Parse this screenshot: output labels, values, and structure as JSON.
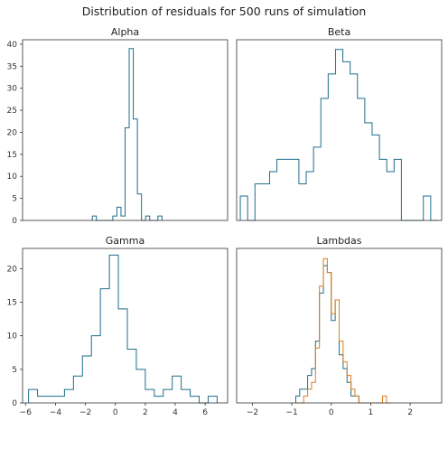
{
  "title": "Distribution of residuals for 500 runs of simulation",
  "colors": {
    "series_blue": "#1f6e8c",
    "series_orange": "#e07b1a",
    "axes": "#333333",
    "background": "#ffffff"
  },
  "chart_data": [
    {
      "type": "histogram",
      "title": "Alpha",
      "xlim": [
        -5.0,
        5.0
      ],
      "ylim": [
        0,
        41
      ],
      "yticks": [
        0,
        5,
        10,
        15,
        20,
        25,
        30,
        35,
        40
      ],
      "xticks": [],
      "series": [
        {
          "color": "#1f6e8c",
          "bin_edges": [
            -1.6,
            -1.4,
            -1.2,
            -1.0,
            -0.8,
            -0.6,
            -0.4,
            -0.2,
            0.0,
            0.2,
            0.4,
            0.6,
            0.8,
            1.0,
            1.2,
            1.4,
            1.6,
            1.8
          ],
          "counts": [
            1,
            0,
            0,
            0,
            0,
            1,
            3,
            1,
            21,
            39,
            23,
            6,
            0,
            1,
            0,
            0,
            1
          ]
        }
      ]
    },
    {
      "type": "histogram",
      "title": "Beta",
      "xlim": [
        -2.8,
        2.8
      ],
      "ylim": [
        0,
        14.8
      ],
      "yticks": [],
      "xticks": [],
      "series": [
        {
          "color": "#1f6e8c",
          "bin_edges": [
            -2.7,
            -2.5,
            -2.3,
            -2.1,
            -1.9,
            -1.7,
            -1.5,
            -1.3,
            -1.1,
            -0.9,
            -0.7,
            -0.5,
            -0.3,
            -0.1,
            0.1,
            0.3,
            0.5,
            0.7,
            0.9,
            1.1,
            1.3,
            1.5,
            1.7,
            1.9,
            2.1,
            2.3,
            2.5,
            2.7
          ],
          "counts": [
            2,
            0,
            3,
            3,
            4,
            5,
            5,
            5,
            3,
            4,
            6,
            10,
            12,
            14,
            13,
            12,
            10,
            8,
            7,
            5,
            4,
            5,
            0,
            0,
            0,
            2,
            0
          ]
        }
      ]
    },
    {
      "type": "histogram",
      "title": "Gamma",
      "xlim": [
        -6.2,
        7.5
      ],
      "ylim": [
        0,
        23
      ],
      "yticks": [
        0,
        5,
        10,
        15,
        20
      ],
      "xticks": [
        -6,
        -4,
        -2,
        0,
        2,
        4,
        6
      ],
      "series": [
        {
          "color": "#1f6e8c",
          "bin_edges": [
            -5.8,
            -5.2,
            -4.6,
            -4.0,
            -3.4,
            -2.8,
            -2.2,
            -1.6,
            -1.0,
            -0.4,
            0.2,
            0.8,
            1.4,
            2.0,
            2.6,
            3.2,
            3.8,
            4.4,
            5.0,
            5.6,
            6.2,
            6.8
          ],
          "counts": [
            2,
            1,
            1,
            1,
            2,
            4,
            7,
            10,
            17,
            22,
            14,
            8,
            5,
            2,
            1,
            2,
            4,
            2,
            1,
            0,
            1
          ]
        }
      ]
    },
    {
      "type": "histogram",
      "title": "Lambdas",
      "xlim": [
        -2.4,
        2.8
      ],
      "ylim": [
        0,
        22.5
      ],
      "yticks": [],
      "xticks": [
        -2,
        -1,
        0,
        1,
        2
      ],
      "series": [
        {
          "color": "#1f6e8c",
          "bin_edges": [
            -0.9,
            -0.8,
            -0.7,
            -0.6,
            -0.5,
            -0.4,
            -0.3,
            -0.2,
            -0.1,
            0.0,
            0.1,
            0.2,
            0.3,
            0.4,
            0.5,
            0.6,
            0.7,
            0.8
          ],
          "counts": [
            1,
            2,
            2,
            4,
            5,
            9,
            16,
            20,
            19,
            12,
            15,
            7,
            5,
            3,
            1,
            1,
            0
          ]
        },
        {
          "color": "#e07b1a",
          "bin_edges": [
            -0.9,
            -0.8,
            -0.7,
            -0.6,
            -0.5,
            -0.4,
            -0.3,
            -0.2,
            -0.1,
            0.0,
            0.1,
            0.2,
            0.3,
            0.4,
            0.5,
            0.6,
            0.7,
            0.8,
            0.9,
            1.0,
            1.1,
            1.2,
            1.3,
            1.4,
            1.5
          ],
          "counts": [
            0,
            0,
            1,
            2,
            3,
            8,
            17,
            21,
            19,
            13,
            15,
            9,
            6,
            4,
            2,
            1,
            0,
            0,
            0,
            0,
            0,
            0,
            1,
            0
          ]
        }
      ]
    }
  ]
}
